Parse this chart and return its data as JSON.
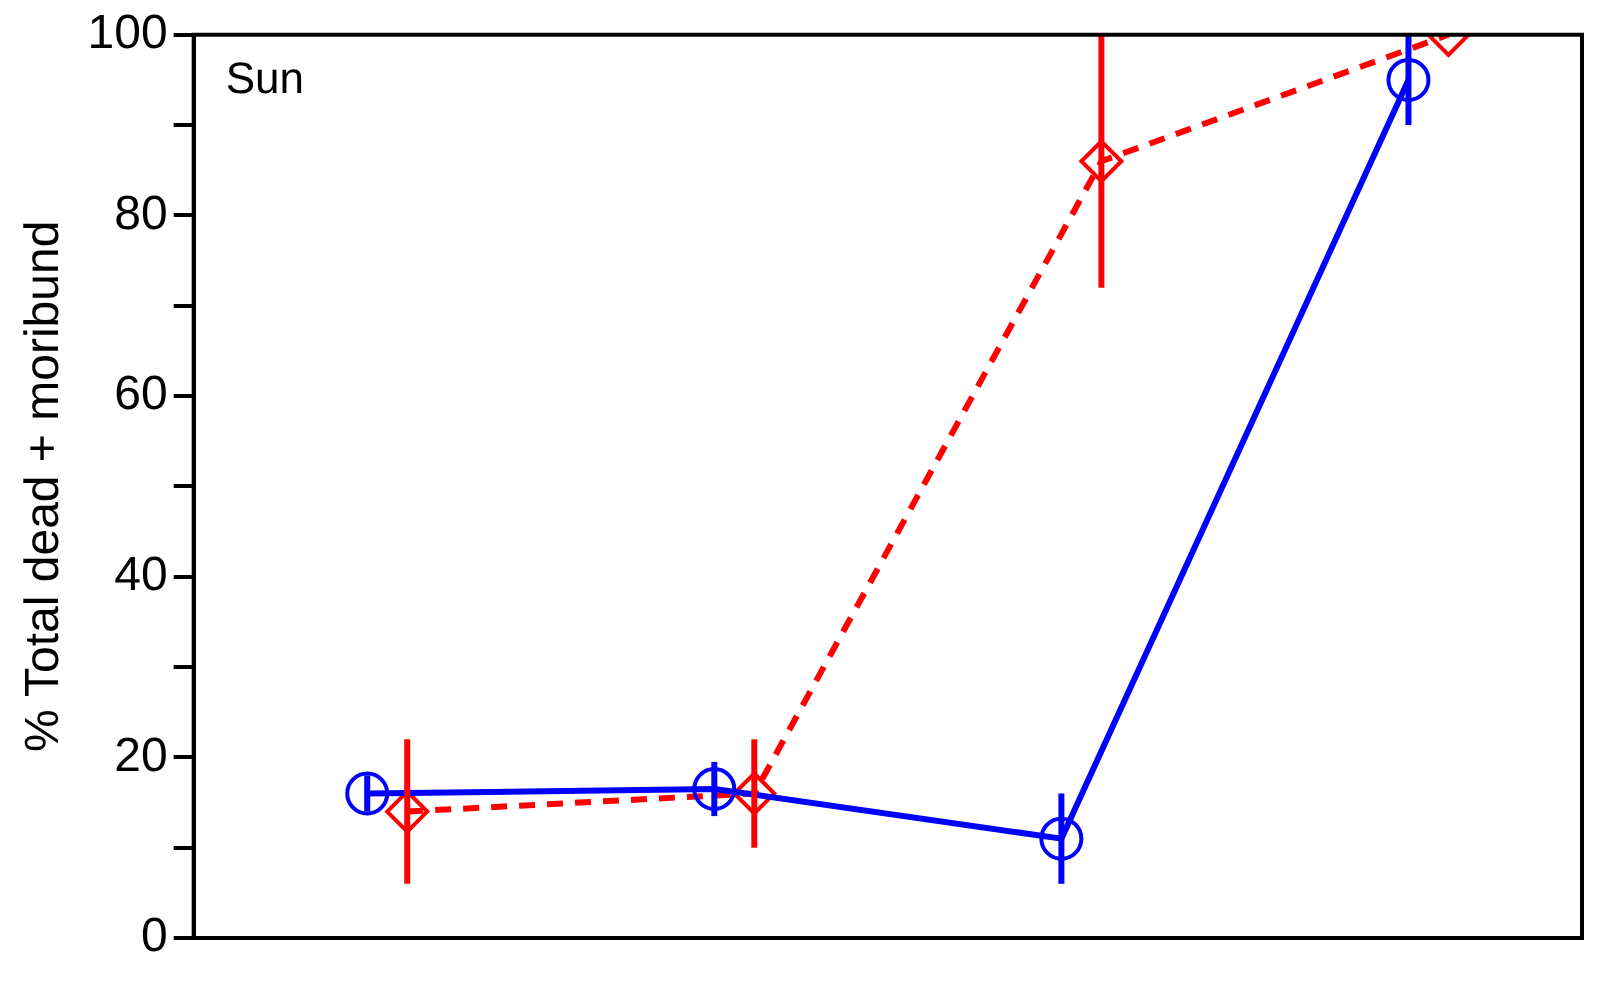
{
  "chart_data": {
    "type": "line",
    "ylabel": "% Total dead + moribund",
    "annotations": [
      "Sun"
    ],
    "categories": [
      null,
      null,
      null,
      null
    ],
    "tick_labels": "y",
    "grid": false,
    "legend": false,
    "ylim": [
      0,
      100
    ],
    "yticks": [
      0,
      {
        "value": 10,
        "label": null
      },
      20,
      {
        "value": 30,
        "label": null
      },
      40,
      {
        "value": 50,
        "label": null
      },
      60,
      {
        "value": 70,
        "label": null
      },
      80,
      {
        "value": 90,
        "label": null
      },
      100
    ],
    "series": [
      {
        "color": "#0000ff",
        "marker": "circle",
        "line_style": "solid",
        "values": [
          16,
          16.5,
          11,
          95
        ],
        "errors": [
          2,
          3,
          5,
          5
        ]
      },
      {
        "color": "#ff0000",
        "marker": "diamond",
        "line_style": "dashed",
        "values": [
          14,
          16,
          86,
          100
        ],
        "errors": [
          8,
          6,
          14,
          null
        ]
      }
    ]
  }
}
